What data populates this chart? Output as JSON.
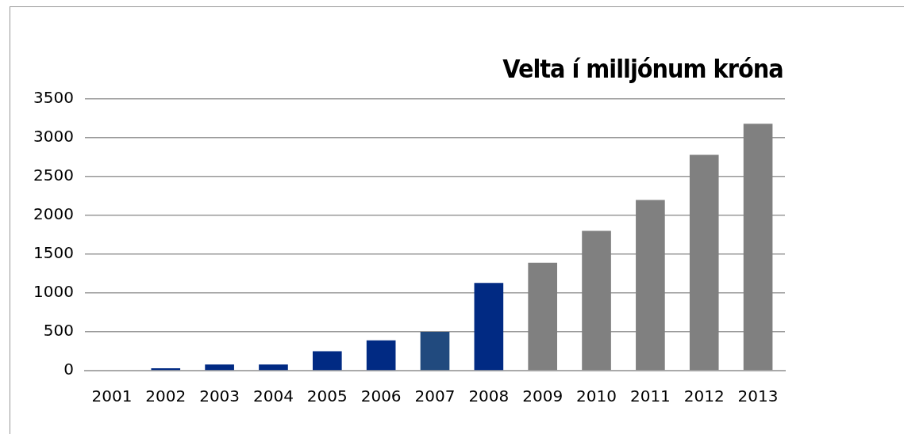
{
  "chart_data": {
    "type": "bar",
    "title": "Velta í milljónum króna",
    "categories": [
      "2001",
      "2002",
      "2003",
      "2004",
      "2005",
      "2006",
      "2007",
      "2008",
      "2009",
      "2010",
      "2011",
      "2012",
      "2013"
    ],
    "values": [
      0,
      30,
      80,
      80,
      250,
      390,
      500,
      1130,
      1390,
      1800,
      2200,
      2780,
      3180
    ],
    "colors": [
      "#012a83",
      "#012a83",
      "#012a83",
      "#012a83",
      "#012a83",
      "#012a83",
      "#214a7e",
      "#012a83",
      "#808080",
      "#808080",
      "#808080",
      "#808080",
      "#808080"
    ],
    "ylim": [
      0,
      3500
    ],
    "yticks": [
      0,
      500,
      1000,
      1500,
      2000,
      2500,
      3000,
      3500
    ],
    "grid": "y",
    "legend": false
  }
}
